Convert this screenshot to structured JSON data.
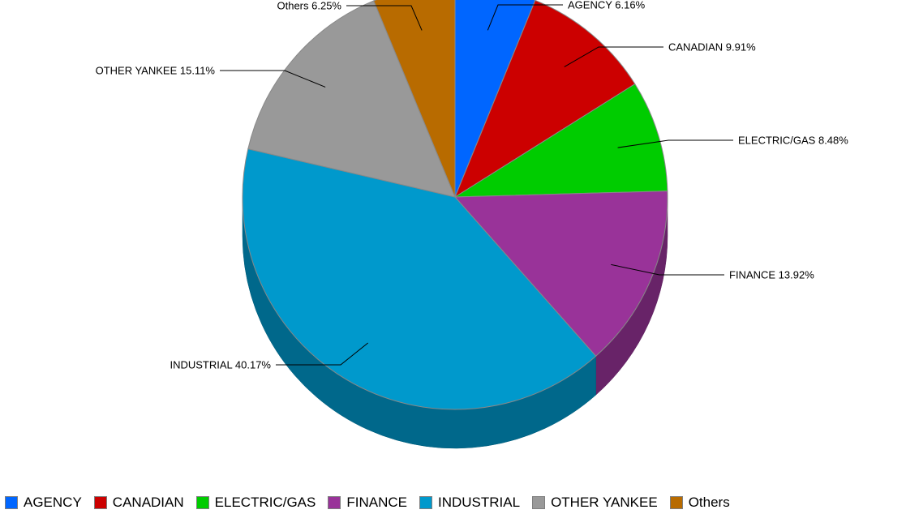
{
  "chart_data": {
    "type": "pie",
    "title": "",
    "slices": [
      {
        "label": "AGENCY",
        "value": 6.16,
        "display": "AGENCY 6.16%",
        "color": "#0066ff"
      },
      {
        "label": "CANADIAN",
        "value": 9.91,
        "display": "CANADIAN 9.91%",
        "color": "#cc0000"
      },
      {
        "label": "ELECTRIC/GAS",
        "value": 8.48,
        "display": "ELECTRIC/GAS 8.48%",
        "color": "#00cc00"
      },
      {
        "label": "FINANCE",
        "value": 13.92,
        "display": "FINANCE 13.92%",
        "color": "#993399"
      },
      {
        "label": "INDUSTRIAL",
        "value": 40.17,
        "display": "INDUSTRIAL 40.17%",
        "color": "#0099cc"
      },
      {
        "label": "OTHER YANKEE",
        "value": 15.11,
        "display": "OTHER YANKEE 15.11%",
        "color": "#999999"
      },
      {
        "label": "Others",
        "value": 6.25,
        "display": "Others 6.25%",
        "color": "#b86b00"
      }
    ],
    "legend_position": "bottom",
    "style": "3d"
  }
}
